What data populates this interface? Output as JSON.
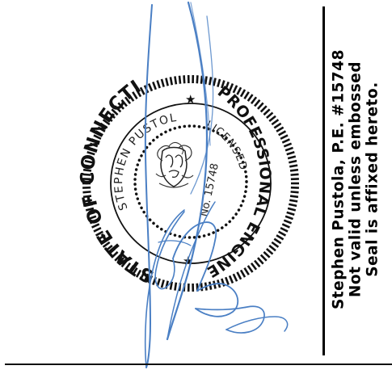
{
  "seal": {
    "outer_text": "STATE OF CONNECTICUT",
    "outer_text_right": "PROFESSIONAL ENGINEER",
    "inner_name": "STEPHEN PUSTOLA",
    "inner_license": "No. 15748",
    "inner_licensed": "LICENSED",
    "ink_color": "#111111"
  },
  "stamp": {
    "line1": "Stephen Pustola, P.E. #15748",
    "line2": "Not valid unless embossed",
    "line3": "Seal is affixed hereto."
  },
  "signature": {
    "ink_color": "#4a7fc4"
  }
}
